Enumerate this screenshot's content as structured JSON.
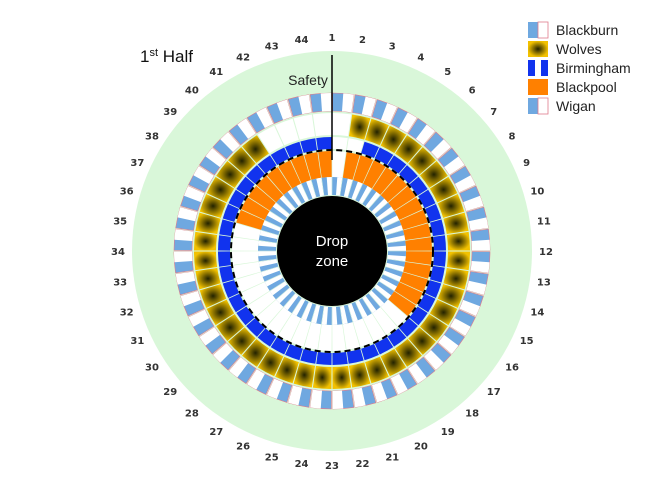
{
  "chart_data": {
    "type": "radial-bar",
    "title": "1st Half",
    "subtitle": "",
    "xlabel": "",
    "ylabel": "",
    "categories": [
      "1",
      "2",
      "3",
      "4",
      "5",
      "6",
      "7",
      "8",
      "9",
      "10",
      "11",
      "12",
      "13",
      "14",
      "15",
      "16",
      "17",
      "18",
      "19",
      "20",
      "21",
      "22",
      "23",
      "24",
      "25",
      "26",
      "27",
      "28",
      "29",
      "30",
      "31",
      "32",
      "33",
      "34",
      "35",
      "36",
      "37",
      "38",
      "39",
      "40",
      "41",
      "42",
      "43",
      "44"
    ],
    "rings_from_outside": [
      "Blackburn",
      "Wolves",
      "Birmingham",
      "Blackpool",
      "Wigan"
    ],
    "series": [
      {
        "name": "Blackburn",
        "color": "#6FA8E0",
        "values": [
          1,
          1,
          1,
          1,
          1,
          1,
          1,
          1,
          1,
          1,
          1,
          1,
          1,
          1,
          1,
          1,
          1,
          1,
          1,
          1,
          1,
          1,
          1,
          1,
          1,
          1,
          1,
          1,
          1,
          1,
          1,
          1,
          1,
          1,
          1,
          1,
          1,
          1,
          1,
          1,
          1,
          1,
          1,
          1
        ]
      },
      {
        "name": "Wolves",
        "color": "#F2C100",
        "values": [
          0,
          1,
          1,
          1,
          1,
          1,
          1,
          1,
          1,
          1,
          1,
          1,
          1,
          1,
          1,
          1,
          1,
          1,
          1,
          1,
          1,
          1,
          1,
          1,
          1,
          1,
          1,
          1,
          1,
          1,
          1,
          1,
          1,
          1,
          1,
          1,
          1,
          1,
          1,
          1,
          0,
          0,
          0,
          0
        ]
      },
      {
        "name": "Birmingham",
        "color": "#1133EE",
        "values": [
          0,
          0,
          1,
          1,
          1,
          1,
          1,
          1,
          1,
          1,
          1,
          1,
          1,
          1,
          1,
          1,
          1,
          1,
          1,
          1,
          1,
          1,
          1,
          1,
          1,
          1,
          1,
          1,
          1,
          1,
          1,
          1,
          1,
          1,
          1,
          1,
          1,
          1,
          1,
          1,
          1,
          1,
          1,
          1
        ]
      },
      {
        "name": "Blackpool",
        "color": "#FF8000",
        "values": [
          0,
          1,
          1,
          1,
          1,
          1,
          1,
          1,
          1,
          1,
          1,
          1,
          1,
          1,
          1,
          1,
          0,
          0,
          0,
          0,
          0,
          0,
          0,
          0,
          0,
          0,
          0,
          0,
          0,
          0,
          0,
          0,
          0,
          0,
          0,
          1,
          1,
          1,
          1,
          1,
          1,
          1,
          1,
          1
        ]
      },
      {
        "name": "Wigan",
        "color": "#6FA8E0",
        "values": [
          1,
          1,
          1,
          1,
          1,
          1,
          1,
          1,
          1,
          1,
          1,
          1,
          1,
          1,
          1,
          1,
          1,
          1,
          1,
          1,
          1,
          1,
          1,
          1,
          1,
          1,
          1,
          1,
          1,
          1,
          1,
          1,
          1,
          1,
          1,
          1,
          1,
          1,
          1,
          1,
          1,
          1,
          1,
          1
        ]
      }
    ],
    "annotations": {
      "safety": "Safety",
      "center_line1": "Drop",
      "center_line2": "zone"
    },
    "legend_placement": "top-right"
  },
  "colors": {
    "background_ring": "#D9F7D9",
    "stripe_light": "#FFFFFF",
    "separator": "#E07A8C",
    "center": "#000000",
    "dashed": "#000000"
  }
}
